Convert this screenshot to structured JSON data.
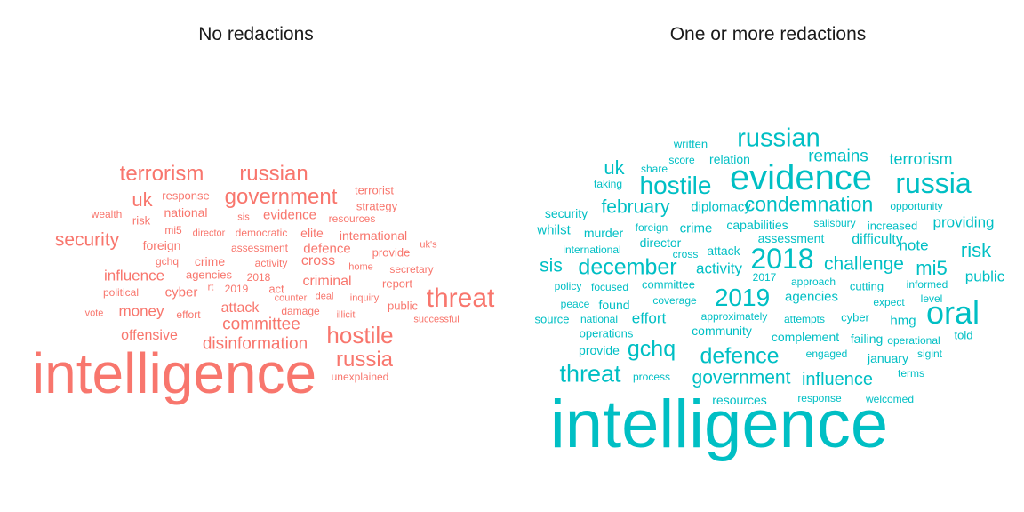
{
  "chart_data": [
    {
      "type": "wordcloud",
      "title": "No redactions",
      "color": "#F8766D",
      "words": [
        {
          "text": "intelligence",
          "size": 64
        },
        {
          "text": "threat",
          "size": 30
        },
        {
          "text": "hostile",
          "size": 26
        },
        {
          "text": "government",
          "size": 24
        },
        {
          "text": "russian",
          "size": 24
        },
        {
          "text": "terrorism",
          "size": 24
        },
        {
          "text": "russia",
          "size": 24
        },
        {
          "text": "uk",
          "size": 22
        },
        {
          "text": "security",
          "size": 21
        },
        {
          "text": "disinformation",
          "size": 19
        },
        {
          "text": "committee",
          "size": 19
        },
        {
          "text": "money",
          "size": 17
        },
        {
          "text": "influence",
          "size": 17
        },
        {
          "text": "offensive",
          "size": 16
        },
        {
          "text": "attack",
          "size": 16
        },
        {
          "text": "criminal",
          "size": 16
        },
        {
          "text": "cross",
          "size": 16
        },
        {
          "text": "defence",
          "size": 15
        },
        {
          "text": "cyber",
          "size": 15
        },
        {
          "text": "evidence",
          "size": 15
        },
        {
          "text": "international",
          "size": 14
        },
        {
          "text": "national",
          "size": 14
        },
        {
          "text": "foreign",
          "size": 14
        },
        {
          "text": "crime",
          "size": 14
        },
        {
          "text": "elite",
          "size": 14
        },
        {
          "text": "terrorist",
          "size": 13
        },
        {
          "text": "strategy",
          "size": 13
        },
        {
          "text": "public",
          "size": 13
        },
        {
          "text": "report",
          "size": 13
        },
        {
          "text": "act",
          "size": 13
        },
        {
          "text": "provide",
          "size": 13
        },
        {
          "text": "agencies",
          "size": 13
        },
        {
          "text": "risk",
          "size": 13
        },
        {
          "text": "response",
          "size": 13
        },
        {
          "text": "wealth",
          "size": 12
        },
        {
          "text": "resources",
          "size": 12
        },
        {
          "text": "activity",
          "size": 12
        },
        {
          "text": "2018",
          "size": 12
        },
        {
          "text": "2019",
          "size": 12
        },
        {
          "text": "damage",
          "size": 12
        },
        {
          "text": "unexplained",
          "size": 12
        },
        {
          "text": "secretary",
          "size": 12
        },
        {
          "text": "effort",
          "size": 12
        },
        {
          "text": "political",
          "size": 12
        },
        {
          "text": "mi5",
          "size": 12
        },
        {
          "text": "gchq",
          "size": 12
        },
        {
          "text": "democratic",
          "size": 12
        },
        {
          "text": "assessment",
          "size": 12
        },
        {
          "text": "director",
          "size": 11
        },
        {
          "text": "sis",
          "size": 11
        },
        {
          "text": "uk's",
          "size": 11
        },
        {
          "text": "home",
          "size": 11
        },
        {
          "text": "deal",
          "size": 11
        },
        {
          "text": "counter",
          "size": 11
        },
        {
          "text": "inquiry",
          "size": 11
        },
        {
          "text": "illicit",
          "size": 11
        },
        {
          "text": "successful",
          "size": 11
        },
        {
          "text": "vote",
          "size": 11
        },
        {
          "text": "rt",
          "size": 11
        }
      ]
    },
    {
      "type": "wordcloud",
      "title": "One or more redactions",
      "color": "#00BFC4",
      "words": [
        {
          "text": "intelligence",
          "size": 76
        },
        {
          "text": "evidence",
          "size": 40
        },
        {
          "text": "oral",
          "size": 36
        },
        {
          "text": "2018",
          "size": 32
        },
        {
          "text": "russia",
          "size": 32
        },
        {
          "text": "russian",
          "size": 29
        },
        {
          "text": "hostile",
          "size": 28
        },
        {
          "text": "2019",
          "size": 28
        },
        {
          "text": "threat",
          "size": 27
        },
        {
          "text": "defence",
          "size": 25
        },
        {
          "text": "december",
          "size": 25
        },
        {
          "text": "gchq",
          "size": 25
        },
        {
          "text": "condemnation",
          "size": 23
        },
        {
          "text": "mi5",
          "size": 22
        },
        {
          "text": "uk",
          "size": 22
        },
        {
          "text": "risk",
          "size": 22
        },
        {
          "text": "challenge",
          "size": 21
        },
        {
          "text": "government",
          "size": 21
        },
        {
          "text": "february",
          "size": 21
        },
        {
          "text": "sis",
          "size": 21
        },
        {
          "text": "influence",
          "size": 20
        },
        {
          "text": "remains",
          "size": 19
        },
        {
          "text": "terrorism",
          "size": 18
        },
        {
          "text": "effort",
          "size": 17
        },
        {
          "text": "providing",
          "size": 17
        },
        {
          "text": "note",
          "size": 17
        },
        {
          "text": "activity",
          "size": 17
        },
        {
          "text": "public",
          "size": 17
        },
        {
          "text": "difficulty",
          "size": 16
        },
        {
          "text": "diplomacy",
          "size": 15
        },
        {
          "text": "crime",
          "size": 15
        },
        {
          "text": "agencies",
          "size": 15
        },
        {
          "text": "whilst",
          "size": 15
        },
        {
          "text": "hmg",
          "size": 15
        },
        {
          "text": "security",
          "size": 14
        },
        {
          "text": "community",
          "size": 14
        },
        {
          "text": "relation",
          "size": 14
        },
        {
          "text": "attack",
          "size": 14
        },
        {
          "text": "murder",
          "size": 14
        },
        {
          "text": "found",
          "size": 14
        },
        {
          "text": "director",
          "size": 14
        },
        {
          "text": "assessment",
          "size": 14
        },
        {
          "text": "capabilities",
          "size": 14
        },
        {
          "text": "resources",
          "size": 14
        },
        {
          "text": "provide",
          "size": 14
        },
        {
          "text": "january",
          "size": 14
        },
        {
          "text": "complement",
          "size": 14
        },
        {
          "text": "failing",
          "size": 14
        },
        {
          "text": "written",
          "size": 13
        },
        {
          "text": "committee",
          "size": 13
        },
        {
          "text": "cutting",
          "size": 13
        },
        {
          "text": "cyber",
          "size": 13
        },
        {
          "text": "operations",
          "size": 13
        },
        {
          "text": "source",
          "size": 13
        },
        {
          "text": "told",
          "size": 13
        },
        {
          "text": "increased",
          "size": 13
        },
        {
          "text": "salisbury",
          "size": 12
        },
        {
          "text": "score",
          "size": 12
        },
        {
          "text": "opportunity",
          "size": 12
        },
        {
          "text": "informed",
          "size": 12
        },
        {
          "text": "approach",
          "size": 12
        },
        {
          "text": "attempts",
          "size": 12
        },
        {
          "text": "operational",
          "size": 12
        },
        {
          "text": "engaged",
          "size": 12
        },
        {
          "text": "sigint",
          "size": 12
        },
        {
          "text": "terms",
          "size": 12
        },
        {
          "text": "approximately",
          "size": 12
        },
        {
          "text": "response",
          "size": 12
        },
        {
          "text": "welcomed",
          "size": 12
        },
        {
          "text": "foreign",
          "size": 12
        },
        {
          "text": "cross",
          "size": 12
        },
        {
          "text": "focused",
          "size": 12
        },
        {
          "text": "policy",
          "size": 12
        },
        {
          "text": "coverage",
          "size": 12
        },
        {
          "text": "2017",
          "size": 12
        },
        {
          "text": "peace",
          "size": 12
        },
        {
          "text": "national",
          "size": 12
        },
        {
          "text": "expect",
          "size": 12
        },
        {
          "text": "level",
          "size": 12
        },
        {
          "text": "process",
          "size": 12
        },
        {
          "text": "taking",
          "size": 12
        },
        {
          "text": "share",
          "size": 12
        },
        {
          "text": "international",
          "size": 12
        }
      ]
    }
  ]
}
